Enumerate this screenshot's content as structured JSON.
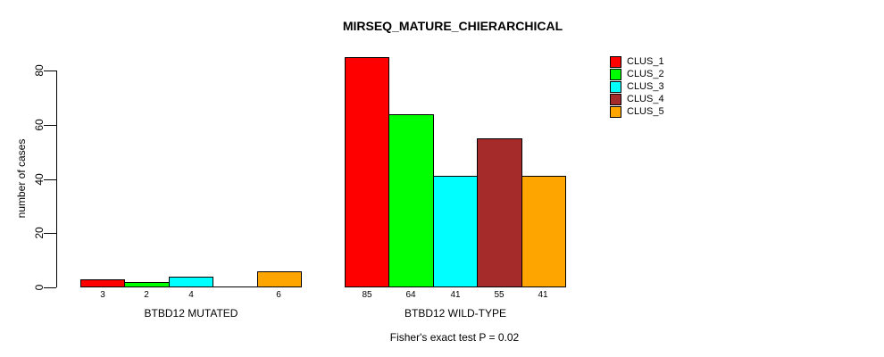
{
  "background_color": "#ffffff",
  "text_color": "#000000",
  "chart_data": {
    "type": "bar",
    "title": "MIRSEQ_MATURE_CHIERARCHICAL",
    "xlabel": "",
    "ylabel": "number of cases",
    "ylim": [
      0,
      85
    ],
    "yticks": [
      0,
      20,
      40,
      60,
      80
    ],
    "grid": false,
    "legend_position": "top-right",
    "annotation": "Fisher's exact test P = 0.02",
    "series": [
      {
        "name": "CLUS_1",
        "color": "#ff0000"
      },
      {
        "name": "CLUS_2",
        "color": "#00ff00"
      },
      {
        "name": "CLUS_3",
        "color": "#00ffff"
      },
      {
        "name": "CLUS_4",
        "color": "#a52a2a"
      },
      {
        "name": "CLUS_5",
        "color": "#ffa500"
      }
    ],
    "groups": [
      {
        "label": "BTBD12 MUTATED",
        "values": [
          3,
          2,
          4,
          0,
          6
        ],
        "bar_labels": [
          "3",
          "2",
          "4",
          "",
          "6"
        ]
      },
      {
        "label": "BTBD12 WILD-TYPE",
        "values": [
          85,
          64,
          41,
          55,
          41
        ],
        "bar_labels": [
          "85",
          "64",
          "41",
          "55",
          "41"
        ]
      }
    ]
  }
}
